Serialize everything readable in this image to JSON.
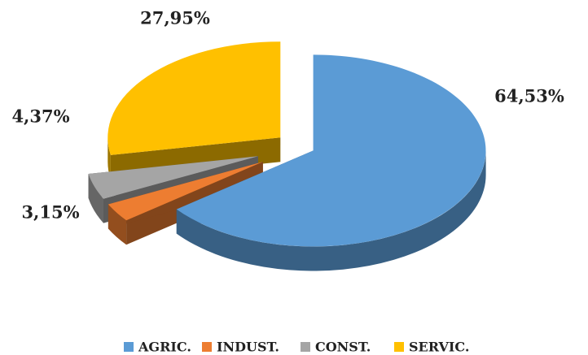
{
  "chart_data": {
    "type": "pie",
    "categories": [
      "AGRIC.",
      "INDUST.",
      "CONST.",
      "SERVIC."
    ],
    "values": [
      64.53,
      3.15,
      4.37,
      27.95
    ],
    "value_labels": [
      "64,53%",
      "3,15%",
      "4,37%",
      "27,95%"
    ],
    "colors": [
      "#5b9bd5",
      "#ed7d31",
      "#a5a5a5",
      "#ffc000"
    ],
    "legend": "bottom"
  }
}
